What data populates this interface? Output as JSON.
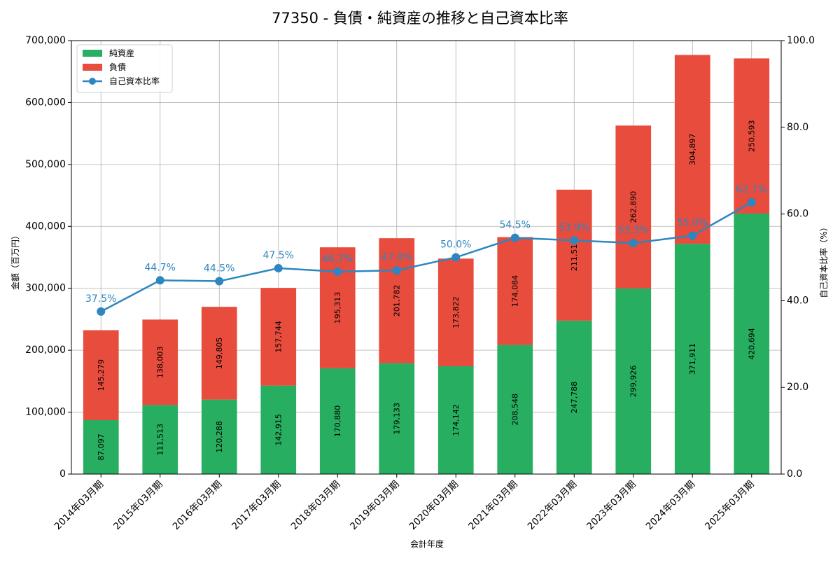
{
  "chart_data": {
    "type": "bar",
    "title": "77350 - 負債・純資産の推移と自己資本比率",
    "xlabel": "会計年度",
    "ylabel": "金額（百万円）",
    "y2label": "自己資本比率（%）",
    "ylim": [
      0,
      700000
    ],
    "y2lim": [
      0,
      100
    ],
    "yticks": [
      0,
      100000,
      200000,
      300000,
      400000,
      500000,
      600000,
      700000
    ],
    "ytick_labels": [
      "0",
      "100,000",
      "200,000",
      "300,000",
      "400,000",
      "500,000",
      "600,000",
      "700,000"
    ],
    "y2ticks": [
      0,
      20,
      40,
      60,
      80,
      100
    ],
    "y2tick_labels": [
      "0.0",
      "20.0",
      "40.0",
      "60.0",
      "80.0",
      "100.0"
    ],
    "grid": true,
    "legend_position": "top-left",
    "categories": [
      "2014年03月期",
      "2015年03月期",
      "2016年03月期",
      "2017年03月期",
      "2018年03月期",
      "2019年03月期",
      "2020年03月期",
      "2021年03月期",
      "2022年03月期",
      "2023年03月期",
      "2024年03月期",
      "2025年03月期"
    ],
    "series": [
      {
        "name": "純資産",
        "kind": "stacked-bar",
        "color": "#27ae60",
        "values": [
          87097,
          111513,
          120288,
          142915,
          170880,
          179133,
          174142,
          208548,
          247788,
          299926,
          371911,
          420694
        ],
        "labels": [
          "87,097",
          "111,513",
          "120,288",
          "142,915",
          "170,880",
          "179,133",
          "174,142",
          "208,548",
          "247,788",
          "299,926",
          "371,911",
          "420,694"
        ]
      },
      {
        "name": "負債",
        "kind": "stacked-bar",
        "color": "#e74c3c",
        "values": [
          145279,
          138003,
          149805,
          157744,
          195313,
          201782,
          173822,
          174084,
          211517,
          262890,
          304897,
          250593
        ],
        "labels": [
          "145,279",
          "138,003",
          "149,805",
          "157,744",
          "195,313",
          "201,782",
          "173,822",
          "174,084",
          "211,517",
          "262,890",
          "304,897",
          "250,593"
        ]
      },
      {
        "name": "自己資本比率",
        "kind": "line",
        "axis": "right",
        "color": "#2e86c1",
        "values": [
          37.5,
          44.7,
          44.5,
          47.5,
          46.7,
          47.0,
          50.0,
          54.5,
          53.9,
          53.3,
          55.0,
          62.7
        ],
        "labels": [
          "37.5%",
          "44.7%",
          "44.5%",
          "47.5%",
          "46.7%",
          "47.0%",
          "50.0%",
          "54.5%",
          "53.9%",
          "53.3%",
          "55.0%",
          "62.7%"
        ]
      }
    ]
  }
}
